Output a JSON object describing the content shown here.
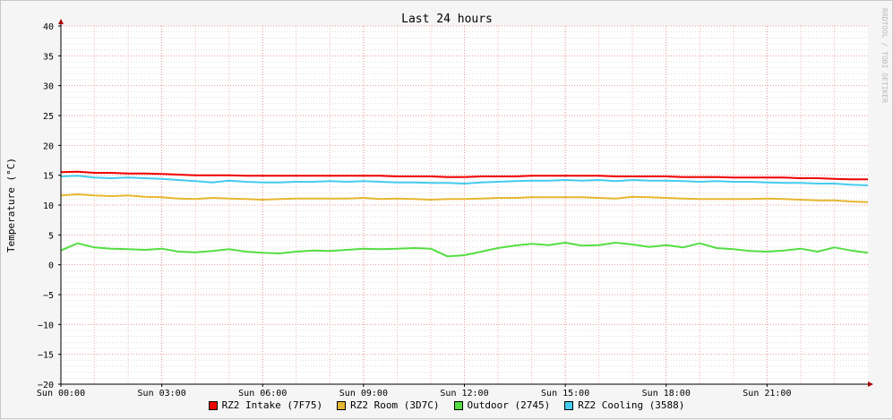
{
  "chart_data": {
    "type": "line",
    "title": "Last 24 hours",
    "ylabel": "Temperature (°C)",
    "xlabel": "",
    "watermark": "RRDTOOL / TOBI OETIKER",
    "ylim": [
      -20,
      40
    ],
    "yticks": [
      40,
      35,
      30,
      25,
      20,
      15,
      10,
      5,
      0,
      -5,
      -10,
      -15,
      -20
    ],
    "xlim": [
      0,
      24
    ],
    "xticks": [
      {
        "x": 0,
        "label": "Sun 00:00"
      },
      {
        "x": 3,
        "label": "Sun 03:00"
      },
      {
        "x": 6,
        "label": "Sun 06:00"
      },
      {
        "x": 9,
        "label": "Sun 09:00"
      },
      {
        "x": 12,
        "label": "Sun 12:00"
      },
      {
        "x": 15,
        "label": "Sun 15:00"
      },
      {
        "x": 18,
        "label": "Sun 18:00"
      },
      {
        "x": 21,
        "label": "Sun 21:00"
      }
    ],
    "grid": true,
    "legend_position": "bottom",
    "x": [
      0,
      0.5,
      1,
      1.5,
      2,
      2.5,
      3,
      3.5,
      4,
      4.5,
      5,
      5.5,
      6,
      6.5,
      7,
      7.5,
      8,
      8.5,
      9,
      9.5,
      10,
      10.5,
      11,
      11.5,
      12,
      12.5,
      13,
      13.5,
      14,
      14.5,
      15,
      15.5,
      16,
      16.5,
      17,
      17.5,
      18,
      18.5,
      19,
      19.5,
      20,
      20.5,
      21,
      21.5,
      22,
      22.5,
      23,
      23.5,
      24
    ],
    "series": [
      {
        "name": "RZ2 Intake (7F75)",
        "color": "#ee0000",
        "values": [
          15.5,
          15.6,
          15.4,
          15.4,
          15.3,
          15.3,
          15.2,
          15.1,
          15.0,
          15.0,
          15.0,
          14.9,
          14.9,
          14.9,
          14.9,
          14.9,
          14.9,
          14.9,
          14.9,
          14.9,
          14.8,
          14.8,
          14.8,
          14.7,
          14.7,
          14.8,
          14.8,
          14.8,
          14.9,
          14.9,
          14.9,
          14.9,
          14.9,
          14.8,
          14.8,
          14.8,
          14.8,
          14.7,
          14.7,
          14.7,
          14.6,
          14.6,
          14.6,
          14.6,
          14.5,
          14.5,
          14.4,
          14.3,
          14.3
        ]
      },
      {
        "name": "RZ2 Room (3D7C)",
        "color": "#e6b730",
        "values": [
          11.6,
          11.8,
          11.6,
          11.5,
          11.6,
          11.4,
          11.3,
          11.1,
          11.0,
          11.2,
          11.1,
          11.0,
          10.9,
          11.0,
          11.1,
          11.1,
          11.1,
          11.1,
          11.2,
          11.0,
          11.1,
          11.0,
          10.9,
          11.0,
          11.0,
          11.1,
          11.2,
          11.2,
          11.3,
          11.3,
          11.3,
          11.3,
          11.2,
          11.1,
          11.4,
          11.3,
          11.2,
          11.1,
          11.0,
          11.0,
          11.0,
          11.0,
          11.1,
          11.0,
          10.9,
          10.8,
          10.8,
          10.6,
          10.5
        ]
      },
      {
        "name": "Outdoor (2745)",
        "color": "#55dd44",
        "values": [
          2.4,
          3.6,
          2.9,
          2.7,
          2.6,
          2.5,
          2.7,
          2.2,
          2.1,
          2.3,
          2.6,
          2.2,
          2.0,
          1.9,
          2.2,
          2.4,
          2.3,
          2.5,
          2.7,
          2.6,
          2.7,
          2.8,
          2.7,
          1.4,
          1.6,
          2.2,
          2.8,
          3.2,
          3.5,
          3.3,
          3.7,
          3.2,
          3.3,
          3.7,
          3.4,
          3.0,
          3.3,
          2.9,
          3.6,
          2.8,
          2.6,
          2.3,
          2.2,
          2.4,
          2.7,
          2.2,
          2.9,
          2.4,
          2.0
        ]
      },
      {
        "name": "RZ2 Cooling (3588)",
        "color": "#44ccee",
        "values": [
          14.8,
          14.9,
          14.6,
          14.5,
          14.6,
          14.5,
          14.4,
          14.2,
          14.0,
          13.8,
          14.1,
          13.9,
          13.8,
          13.8,
          13.9,
          13.9,
          14.0,
          13.9,
          14.0,
          13.9,
          13.8,
          13.8,
          13.7,
          13.7,
          13.6,
          13.8,
          13.9,
          14.0,
          14.1,
          14.1,
          14.2,
          14.1,
          14.2,
          14.0,
          14.2,
          14.1,
          14.1,
          14.0,
          13.9,
          14.0,
          13.9,
          13.9,
          13.8,
          13.7,
          13.7,
          13.6,
          13.6,
          13.4,
          13.3
        ]
      }
    ]
  }
}
